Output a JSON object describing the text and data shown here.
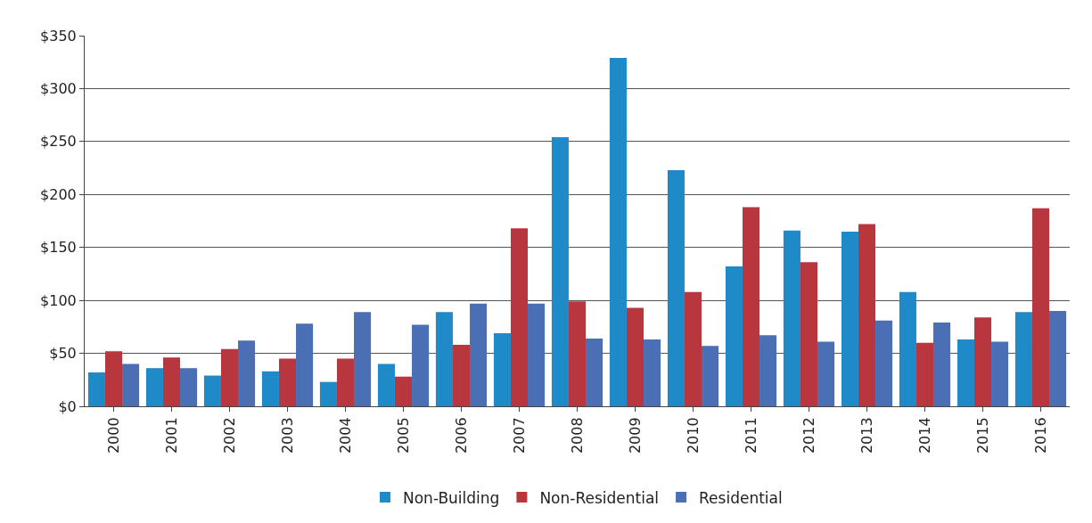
{
  "chart_data": {
    "type": "bar",
    "categories": [
      "2000",
      "2001",
      "2002",
      "2003",
      "2004",
      "2005",
      "2006",
      "2007",
      "2008",
      "2009",
      "2010",
      "2011",
      "2012",
      "2013",
      "2014",
      "2015",
      "2016"
    ],
    "series": [
      {
        "name": "Non-Building",
        "color": "#1f8ac8",
        "values": [
          32,
          36,
          29,
          33,
          23,
          40,
          89,
          69,
          254,
          329,
          223,
          132,
          166,
          165,
          108,
          63,
          89
        ]
      },
      {
        "name": "Non-Residential",
        "color": "#b8373f",
        "values": [
          52,
          46,
          54,
          45,
          45,
          28,
          58,
          168,
          99,
          93,
          108,
          188,
          136,
          172,
          60,
          84,
          187
        ]
      },
      {
        "name": "Residential",
        "color": "#4a6fb5",
        "values": [
          40,
          36,
          62,
          78,
          89,
          77,
          97,
          97,
          64,
          63,
          57,
          67,
          61,
          81,
          79,
          61,
          90
        ]
      }
    ],
    "ylim": [
      0,
      350
    ],
    "yticks": [
      {
        "value": 0,
        "label": "$0"
      },
      {
        "value": 50,
        "label": "$50"
      },
      {
        "value": 100,
        "label": "$100"
      },
      {
        "value": 150,
        "label": "$150"
      },
      {
        "value": 200,
        "label": "$200"
      },
      {
        "value": 250,
        "label": "$250"
      },
      {
        "value": 300,
        "label": "$300"
      },
      {
        "value": 350,
        "label": "$350"
      }
    ],
    "grid": "y",
    "legend": "bottom"
  }
}
